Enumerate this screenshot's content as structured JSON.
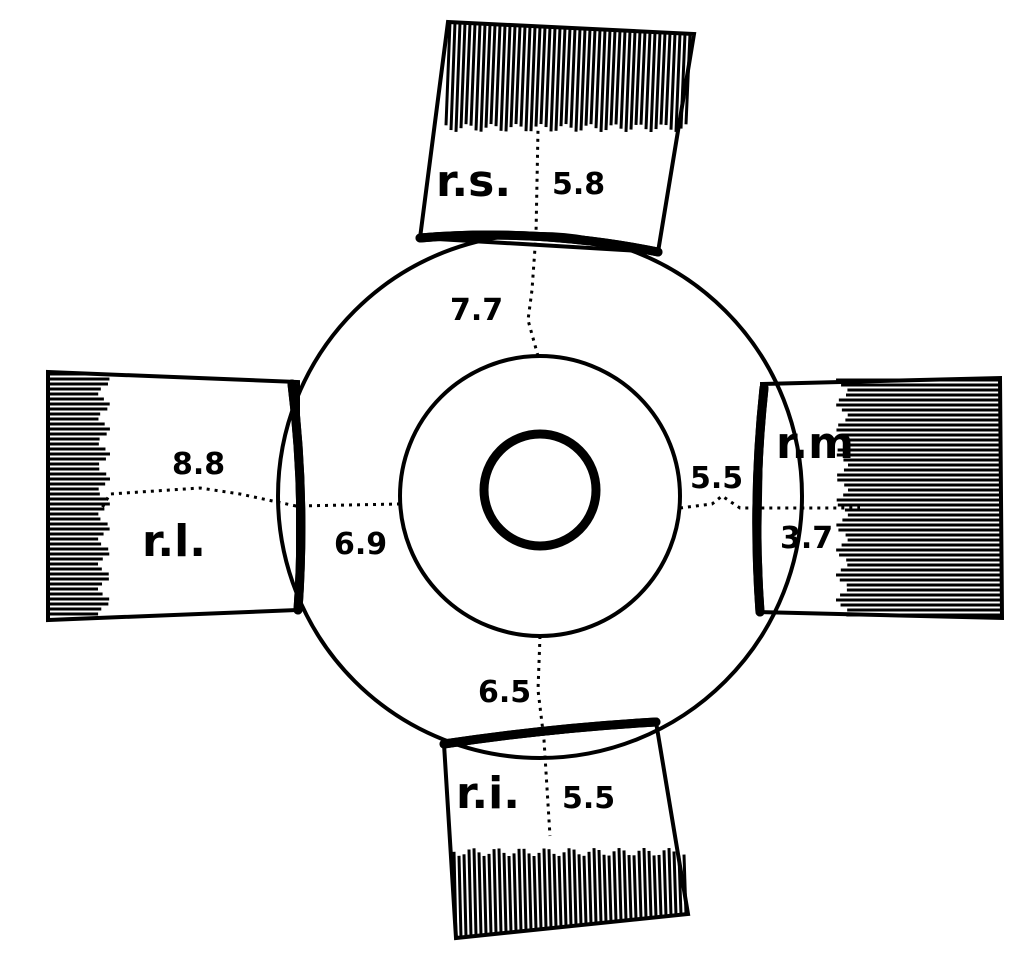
{
  "muscles": {
    "superior": {
      "label": "r.s.",
      "tendon_width": "5.8",
      "insertion_distance": "7.7"
    },
    "medial": {
      "label": "r.m",
      "tendon_width": "3.7",
      "insertion_distance": "5.5"
    },
    "inferior": {
      "label": "r.i.",
      "tendon_width": "5.5",
      "insertion_distance": "6.5"
    },
    "lateral": {
      "label": "r.l.",
      "tendon_width": "8.8",
      "insertion_distance": "6.9"
    }
  },
  "colors": {
    "ink": "#000000",
    "paper": "#ffffff"
  }
}
